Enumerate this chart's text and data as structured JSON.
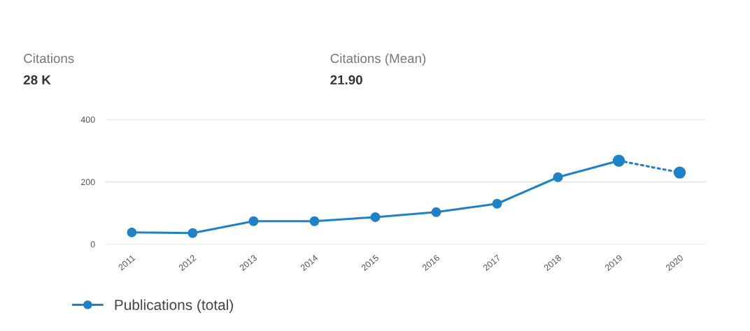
{
  "chart_data": {
    "type": "line",
    "categories": [
      "2011",
      "2012",
      "2013",
      "2014",
      "2015",
      "2016",
      "2017",
      "2018",
      "2019",
      "2020"
    ],
    "series": [
      {
        "name": "Publications (total)",
        "color": "#1f82c8",
        "values": [
          38,
          36,
          74,
          74,
          87,
          103,
          130,
          215,
          268,
          null
        ]
      },
      {
        "color": "#1f82c8",
        "line_style": "dotted",
        "values": [
          null,
          null,
          null,
          null,
          null,
          null,
          null,
          null,
          268,
          230
        ]
      }
    ],
    "ylim": [
      0,
      400
    ],
    "yticks": [
      0,
      200,
      400
    ],
    "grid": "y",
    "legend": "bottom left",
    "marker": "circle",
    "annotations": [
      "Citations",
      "28 K",
      "Citations (Mean)",
      "21.90"
    ]
  }
}
